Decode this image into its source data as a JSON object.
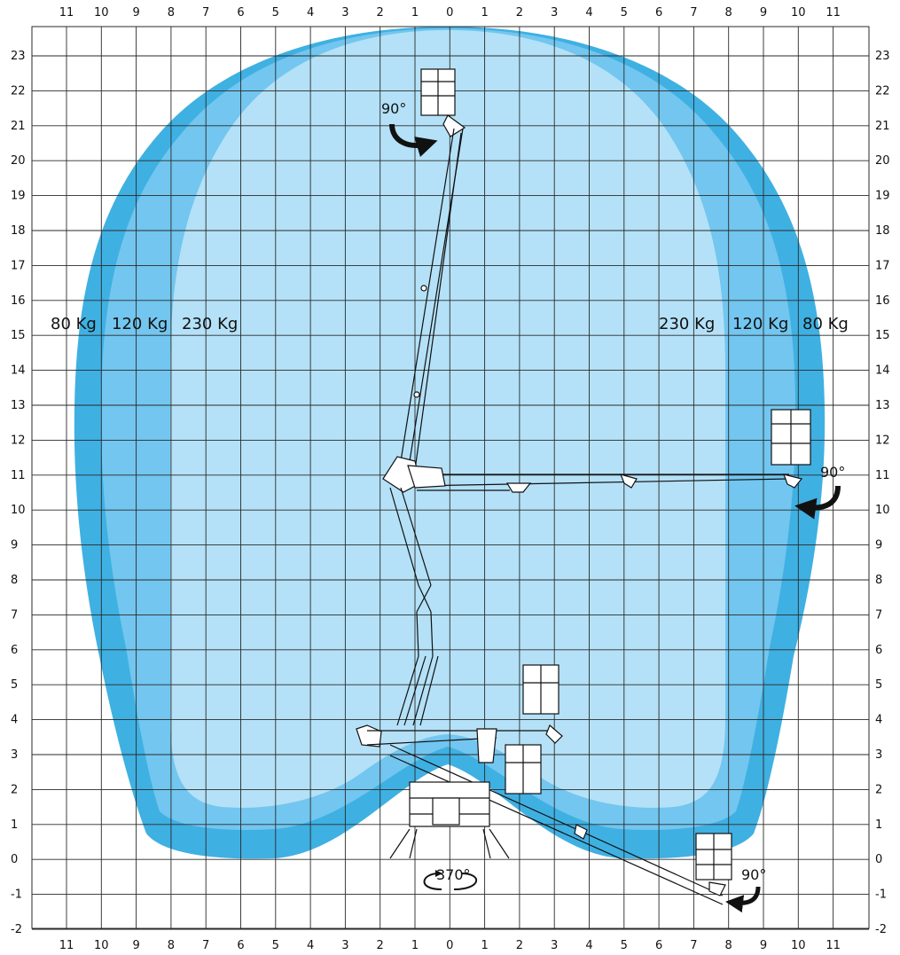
{
  "axes": {
    "x_ticks": [
      "11",
      "10",
      "9",
      "8",
      "7",
      "6",
      "5",
      "4",
      "3",
      "2",
      "1",
      "0",
      "1",
      "2",
      "3",
      "4",
      "5",
      "6",
      "7",
      "8",
      "9",
      "10",
      "11"
    ],
    "y_ticks": [
      "23",
      "22",
      "21",
      "20",
      "19",
      "18",
      "17",
      "16",
      "15",
      "14",
      "13",
      "12",
      "11",
      "10",
      "9",
      "8",
      "7",
      "6",
      "5",
      "4",
      "3",
      "2",
      "1",
      "0",
      "-1",
      "-2"
    ]
  },
  "load_zones": {
    "left": [
      "80 Kg",
      "120 Kg",
      "230 Kg"
    ],
    "right": [
      "230 Kg",
      "120 Kg",
      "80 Kg"
    ],
    "colors": {
      "80 Kg": "#3fb0e2",
      "120 Kg": "#72c6ef",
      "230 Kg": "#b4e1f7"
    }
  },
  "annotations": {
    "angle_top": "90°",
    "angle_right": "90°",
    "angle_bottom": "90°",
    "rotation": "370°"
  }
}
